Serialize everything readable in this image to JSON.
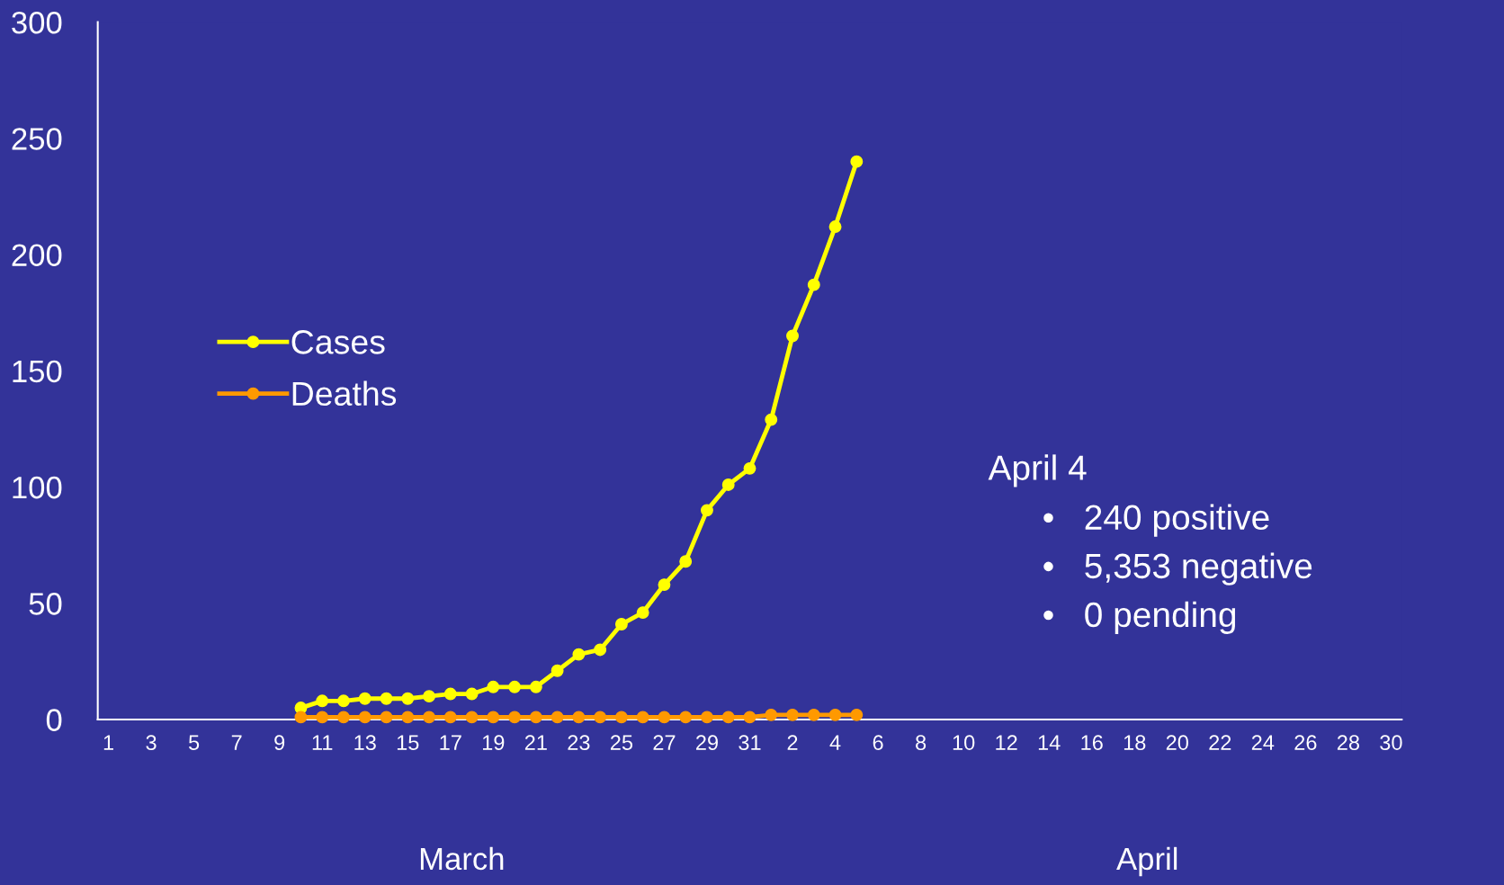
{
  "chart_data": {
    "type": "line",
    "categories": [
      "1",
      null,
      "3",
      null,
      "5",
      null,
      "7",
      null,
      "9",
      null,
      "11",
      null,
      "13",
      null,
      "15",
      null,
      "17",
      null,
      "19",
      null,
      "21",
      null,
      "23",
      null,
      "25",
      null,
      "27",
      null,
      "29",
      null,
      "31",
      null,
      "2",
      null,
      "4",
      null,
      "6",
      null,
      "8",
      null,
      "10",
      null,
      "12",
      null,
      "14",
      null,
      "16",
      null,
      "18",
      null,
      "20",
      null,
      "22",
      null,
      "24",
      null,
      "26",
      null,
      "28",
      null,
      "30"
    ],
    "series": [
      {
        "name": "Cases",
        "color": "#ffff00",
        "values": [
          null,
          null,
          null,
          null,
          null,
          null,
          null,
          null,
          null,
          5,
          8,
          8,
          9,
          9,
          9,
          10,
          11,
          11,
          14,
          14,
          14,
          21,
          28,
          30,
          41,
          46,
          58,
          68,
          90,
          101,
          108,
          129,
          165,
          187,
          212,
          240,
          null,
          null,
          null,
          null,
          null,
          null,
          null,
          null,
          null,
          null,
          null,
          null,
          null,
          null,
          null,
          null,
          null,
          null,
          null,
          null,
          null,
          null,
          null,
          null,
          null
        ]
      },
      {
        "name": "Deaths",
        "color": "#ff9900",
        "values": [
          null,
          null,
          null,
          null,
          null,
          null,
          null,
          null,
          null,
          1,
          1,
          1,
          1,
          1,
          1,
          1,
          1,
          1,
          1,
          1,
          1,
          1,
          1,
          1,
          1,
          1,
          1,
          1,
          1,
          1,
          1,
          2,
          2,
          2,
          2,
          2,
          null,
          null,
          null,
          null,
          null,
          null,
          null,
          null,
          null,
          null,
          null,
          null,
          null,
          null,
          null,
          null,
          null,
          null,
          null,
          null,
          null,
          null,
          null,
          null,
          null
        ]
      }
    ],
    "ylim": [
      0,
      300
    ],
    "yticks": [
      0,
      50,
      100,
      150,
      200,
      250,
      300
    ],
    "marker": "circle",
    "line_style": "solid",
    "grid": false,
    "legend": "center left",
    "annotations": [
      "March",
      "April",
      "April 4",
      "•   240 positive",
      "•   5,353 negative",
      "•   0 pending"
    ]
  }
}
